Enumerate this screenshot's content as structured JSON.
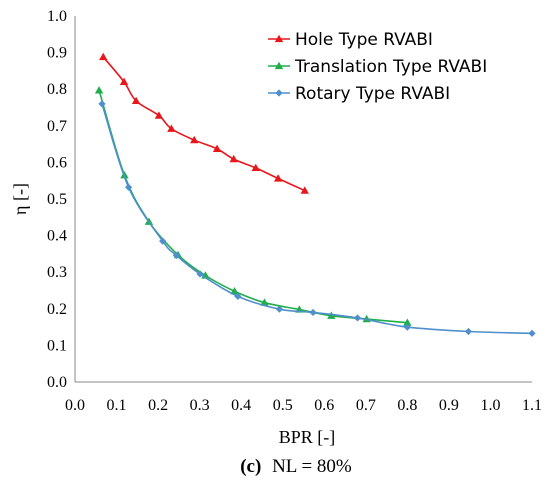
{
  "chart_data": {
    "type": "line",
    "xlabel": "BPR [-]",
    "ylabel": "η [-]",
    "xlim": [
      0.0,
      1.1
    ],
    "ylim": [
      0.0,
      1.0
    ],
    "x_ticks": [
      "0.0",
      "0.1",
      "0.2",
      "0.3",
      "0.4",
      "0.5",
      "0.6",
      "0.7",
      "0.8",
      "0.9",
      "1.0",
      "1.1"
    ],
    "y_ticks": [
      "0.0",
      "0.1",
      "0.2",
      "0.3",
      "0.4",
      "0.5",
      "0.6",
      "0.7",
      "0.8",
      "0.9",
      "1.0"
    ],
    "grid": false,
    "legend_position": "top-right",
    "series": [
      {
        "name": "Hole Type RVABI",
        "color": "#e8161b",
        "marker": "triangle",
        "x": [
          0.068,
          0.118,
          0.147,
          0.202,
          0.232,
          0.287,
          0.342,
          0.382,
          0.435,
          0.489,
          0.553
        ],
        "y": [
          0.888,
          0.82,
          0.768,
          0.728,
          0.692,
          0.661,
          0.637,
          0.609,
          0.585,
          0.556,
          0.523
        ]
      },
      {
        "name": "Translation Type RVABI",
        "color": "#1fae4b",
        "marker": "triangle",
        "x": [
          0.058,
          0.119,
          0.178,
          0.248,
          0.314,
          0.384,
          0.456,
          0.54,
          0.617,
          0.702,
          0.8
        ],
        "y": [
          0.797,
          0.565,
          0.438,
          0.347,
          0.291,
          0.248,
          0.217,
          0.198,
          0.181,
          0.172,
          0.162
        ]
      },
      {
        "name": "Rotary Type RVABI",
        "color": "#4f8fcc",
        "marker": "diamond",
        "x": [
          0.065,
          0.129,
          0.211,
          0.244,
          0.301,
          0.392,
          0.492,
          0.573,
          0.68,
          0.8,
          0.947,
          1.1
        ],
        "y": [
          0.76,
          0.532,
          0.385,
          0.346,
          0.295,
          0.234,
          0.199,
          0.19,
          0.175,
          0.15,
          0.138,
          0.133
        ]
      }
    ]
  },
  "caption": {
    "label": "(c)",
    "text": "NL = 80%"
  }
}
